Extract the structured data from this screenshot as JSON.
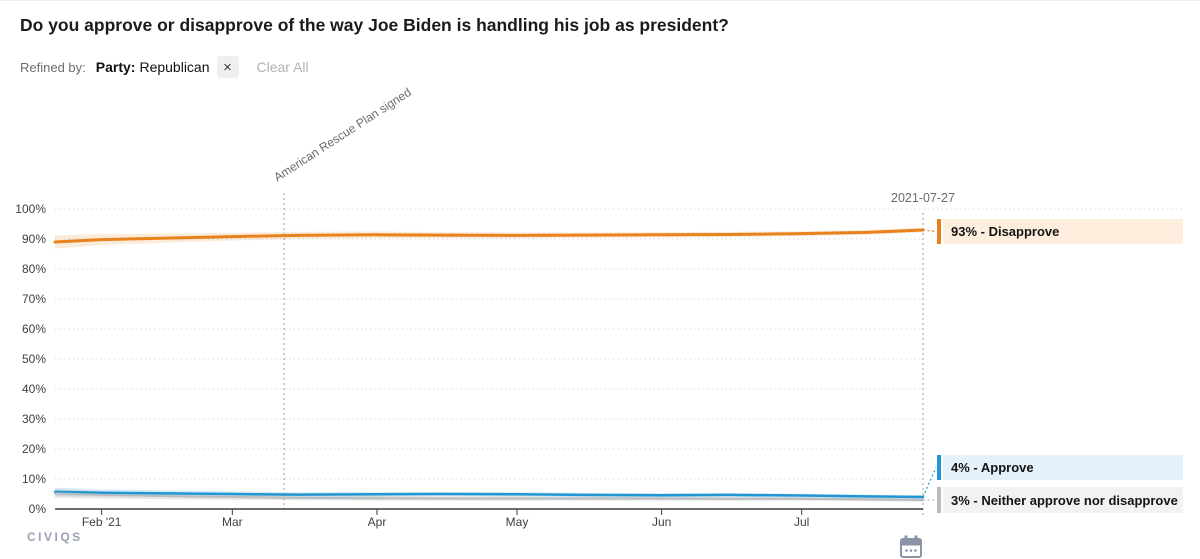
{
  "page": {
    "title": "Do you approve or disapprove of the way Joe Biden is handling his job as president?",
    "refined_by_label": "Refined by:",
    "filter_chip": {
      "key": "Party:",
      "value": "Republican",
      "remove_glyph": "×"
    },
    "clear_all_label": "Clear All",
    "brand_logo_text": "CIVIQS"
  },
  "chart_data": {
    "type": "line",
    "title": "",
    "xlabel": "",
    "ylabel": "",
    "x_range": [
      "2021-01-22",
      "2021-07-27"
    ],
    "ylim": [
      0,
      100
    ],
    "grid": "horizontal-dotted",
    "legend_position": "end-labels-right",
    "x": [
      "2021-01-22",
      "2021-02-01",
      "2021-02-15",
      "2021-03-01",
      "2021-03-15",
      "2021-04-01",
      "2021-04-15",
      "2021-05-01",
      "2021-05-15",
      "2021-06-01",
      "2021-06-15",
      "2021-07-01",
      "2021-07-15",
      "2021-07-27"
    ],
    "series": [
      {
        "name": "Disapprove",
        "color": "#e8821d",
        "band_color": "rgba(232,130,29,0.16)",
        "values": [
          89,
          89.8,
          90.3,
          90.8,
          91.2,
          91.4,
          91.3,
          91.2,
          91.3,
          91.4,
          91.5,
          91.8,
          92.2,
          93
        ],
        "band_halfwidth": [
          2.2,
          1.8,
          1.5,
          1.3,
          1.2,
          1.1,
          1.0,
          1.0,
          0.9,
          0.9,
          0.9,
          0.8,
          0.8,
          0.8
        ]
      },
      {
        "name": "Approve",
        "color": "#2196d3",
        "band_color": "rgba(33,150,211,0.18)",
        "values": [
          5.7,
          5.4,
          5.2,
          5.0,
          4.8,
          4.9,
          5.0,
          4.9,
          4.7,
          4.6,
          4.7,
          4.5,
          4.2,
          4
        ],
        "band_halfwidth": [
          1.4,
          1.2,
          1.0,
          0.9,
          0.8,
          0.8,
          0.7,
          0.7,
          0.7,
          0.7,
          0.7,
          0.6,
          0.6,
          0.6
        ]
      },
      {
        "name": "Neither approve nor disapprove",
        "color": "#b9bcbe",
        "band_color": "rgba(150,150,150,0.25)",
        "values": [
          5.2,
          4.7,
          4.3,
          4.0,
          3.7,
          3.6,
          3.5,
          3.5,
          3.5,
          3.5,
          3.4,
          3.4,
          3.2,
          3
        ],
        "band_halfwidth": [
          1.4,
          1.2,
          1.0,
          0.9,
          0.8,
          0.8,
          0.7,
          0.7,
          0.7,
          0.7,
          0.7,
          0.6,
          0.6,
          0.6
        ]
      }
    ],
    "ytick_labels": [
      "0%",
      "10%",
      "20%",
      "30%",
      "40%",
      "50%",
      "60%",
      "70%",
      "80%",
      "90%",
      "100%"
    ],
    "xticks": [
      {
        "label": "Feb '21",
        "date": "2021-02-01"
      },
      {
        "label": "Mar",
        "date": "2021-03-01"
      },
      {
        "label": "Apr",
        "date": "2021-04-01"
      },
      {
        "label": "May",
        "date": "2021-05-01"
      },
      {
        "label": "Jun",
        "date": "2021-06-01"
      },
      {
        "label": "Jul",
        "date": "2021-07-01"
      }
    ],
    "event_annotation": {
      "label": "American Rescue Plan signed"
    },
    "end_date_label": "2021-07-27",
    "end_labels": [
      {
        "text": "93% - Disapprove",
        "value": 93,
        "series": "Disapprove",
        "bar_color": "#e8821d",
        "bg_color": "#fdeedd"
      },
      {
        "text": "4% - Approve",
        "value": 4,
        "series": "Approve",
        "bar_color": "#2196d3",
        "bg_color": "#e4f1fa"
      },
      {
        "text": "3% - Neither approve nor disapprove",
        "value": 3,
        "series": "Neither approve nor disapprove",
        "bar_color": "#b9bcbe",
        "bg_color": "#f2f2f2"
      }
    ]
  }
}
